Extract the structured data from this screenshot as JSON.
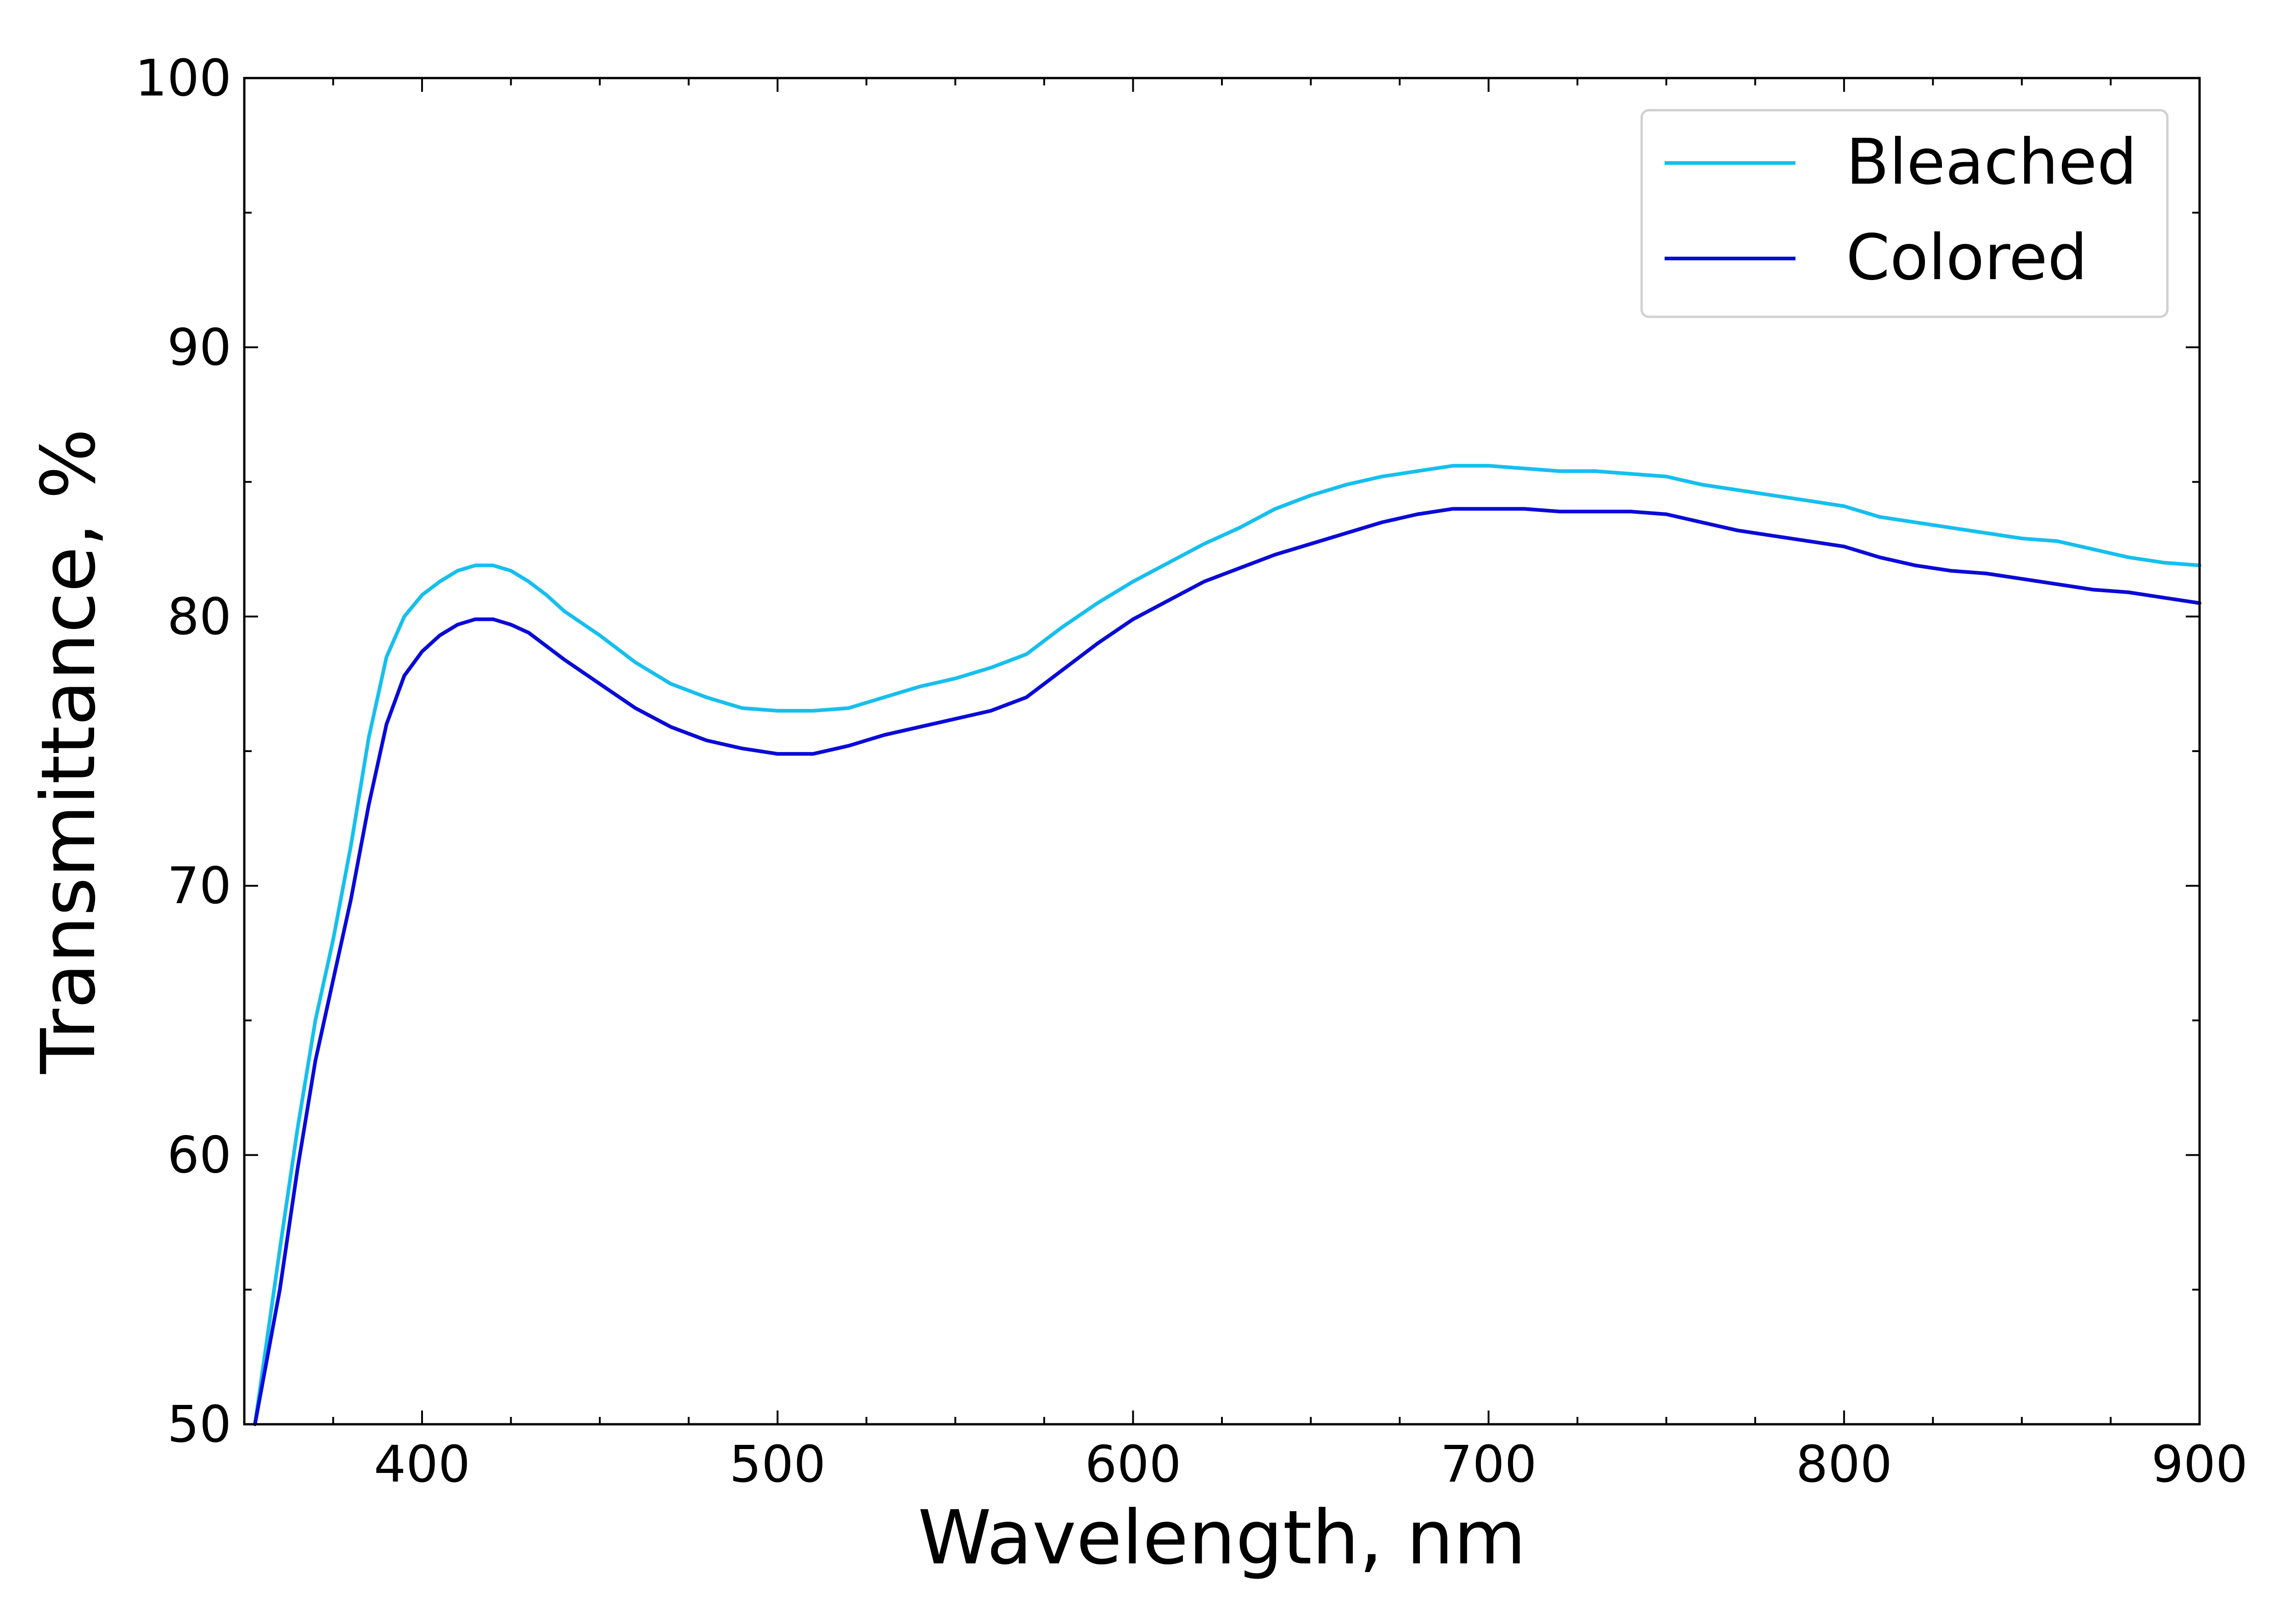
{
  "chart_data": {
    "type": "line",
    "xlabel": "Wavelength, nm",
    "ylabel": "Transmittance, %",
    "xlim": [
      350,
      900
    ],
    "ylim": [
      50,
      100
    ],
    "x_ticks": [
      400,
      500,
      600,
      700,
      800,
      900
    ],
    "y_ticks": [
      50,
      60,
      70,
      80,
      90,
      100
    ],
    "x_minor_step": 25,
    "y_minor_step": 5,
    "tick_direction": "in",
    "grid": false,
    "legend": "top-right",
    "series": [
      {
        "name": "Bleached",
        "color": "#16bfee",
        "x": [
          353,
          360,
          365,
          370,
          375,
          380,
          385,
          390,
          395,
          400,
          405,
          410,
          415,
          420,
          425,
          430,
          435,
          440,
          450,
          460,
          470,
          480,
          490,
          500,
          510,
          520,
          530,
          540,
          550,
          560,
          570,
          580,
          590,
          600,
          610,
          620,
          630,
          640,
          650,
          660,
          670,
          680,
          690,
          700,
          710,
          720,
          730,
          740,
          750,
          760,
          770,
          780,
          790,
          800,
          810,
          820,
          830,
          840,
          850,
          860,
          870,
          880,
          890,
          900
        ],
        "y": [
          50.0,
          56.5,
          61.0,
          65.0,
          68.0,
          71.5,
          75.5,
          78.5,
          80.0,
          80.8,
          81.3,
          81.7,
          81.9,
          81.9,
          81.7,
          81.3,
          80.8,
          80.2,
          79.3,
          78.3,
          77.5,
          77.0,
          76.6,
          76.5,
          76.5,
          76.6,
          77.0,
          77.4,
          77.7,
          78.1,
          78.6,
          79.6,
          80.5,
          81.3,
          82.0,
          82.7,
          83.3,
          84.0,
          84.5,
          84.9,
          85.2,
          85.4,
          85.6,
          85.6,
          85.5,
          85.4,
          85.4,
          85.3,
          85.2,
          84.9,
          84.7,
          84.5,
          84.3,
          84.1,
          83.7,
          83.5,
          83.3,
          83.1,
          82.9,
          82.8,
          82.5,
          82.2,
          82.0,
          81.9
        ]
      },
      {
        "name": "Colored",
        "color": "#0a0ad8",
        "x": [
          353,
          360,
          365,
          370,
          375,
          380,
          385,
          390,
          395,
          400,
          405,
          410,
          415,
          420,
          425,
          430,
          435,
          440,
          450,
          460,
          470,
          480,
          490,
          500,
          510,
          520,
          530,
          540,
          550,
          560,
          570,
          580,
          590,
          600,
          610,
          620,
          630,
          640,
          650,
          660,
          670,
          680,
          690,
          700,
          710,
          720,
          730,
          740,
          750,
          760,
          770,
          780,
          790,
          800,
          810,
          820,
          830,
          840,
          850,
          860,
          870,
          880,
          890,
          900
        ],
        "y": [
          50.0,
          55.0,
          59.5,
          63.5,
          66.5,
          69.5,
          73.0,
          76.0,
          77.8,
          78.7,
          79.3,
          79.7,
          79.9,
          79.9,
          79.7,
          79.4,
          78.9,
          78.4,
          77.5,
          76.6,
          75.9,
          75.4,
          75.1,
          74.9,
          74.9,
          75.2,
          75.6,
          75.9,
          76.2,
          76.5,
          77.0,
          78.0,
          79.0,
          79.9,
          80.6,
          81.3,
          81.8,
          82.3,
          82.7,
          83.1,
          83.5,
          83.8,
          84.0,
          84.0,
          84.0,
          83.9,
          83.9,
          83.9,
          83.8,
          83.5,
          83.2,
          83.0,
          82.8,
          82.6,
          82.2,
          81.9,
          81.7,
          81.6,
          81.4,
          81.2,
          81.0,
          80.9,
          80.7,
          80.5
        ]
      }
    ]
  }
}
